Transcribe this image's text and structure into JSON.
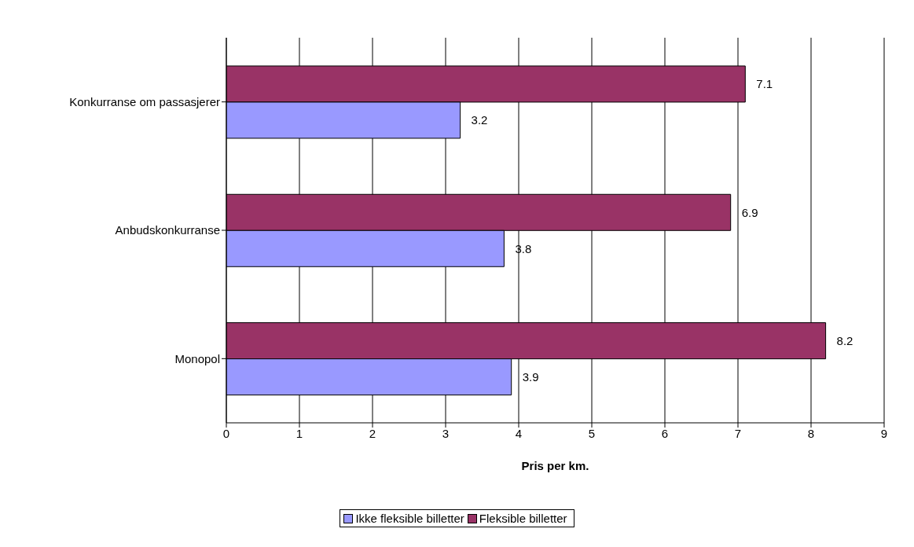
{
  "chart_data": {
    "type": "bar",
    "orientation": "horizontal",
    "categories": [
      "Konkurranse om passasjerer",
      "Anbudskonkurranse",
      "Monopol"
    ],
    "series": [
      {
        "name": "Ikke fleksible billetter",
        "color": "#9999ff",
        "values": [
          3.2,
          3.8,
          3.9
        ]
      },
      {
        "name": "Fleksible billetter",
        "color": "#993366",
        "values": [
          7.1,
          6.9,
          8.2
        ]
      }
    ],
    "xlabel": "Pris per km.",
    "xlim": [
      0,
      9
    ],
    "xticks": [
      0,
      1,
      2,
      3,
      4,
      5,
      6,
      7,
      8,
      9
    ],
    "grid": "x",
    "data_labels": true,
    "legend": "bottom"
  }
}
